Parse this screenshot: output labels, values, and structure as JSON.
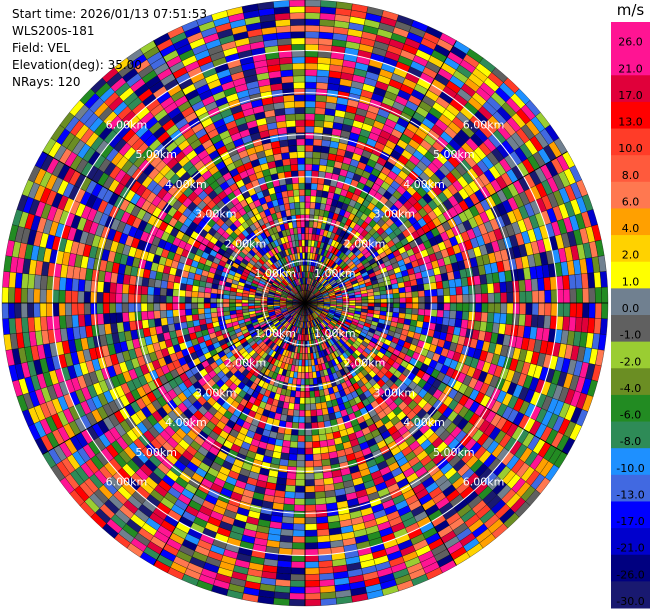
{
  "info": {
    "start_time": "Start time: 2026/01/13 07:51:53",
    "device": "WLS200s-181",
    "field": "Field: VEL",
    "elevation": "Elevation(deg): 35.00",
    "nrays": "NRays: 120"
  },
  "chart_data": {
    "type": "heatmap",
    "projection": "polar-ppi",
    "n_rays": 120,
    "n_gates": 48,
    "range_rings_km": [
      1,
      2,
      3,
      4,
      5,
      6
    ],
    "range_ring_labels": [
      "1.00km",
      "2.00km",
      "3.00km",
      "4.00km",
      "5.00km",
      "6.00km"
    ],
    "max_range_km": 7.2,
    "colorbar": {
      "unit": "m/s",
      "tick_labels": [
        "26.0",
        "21.0",
        "17.0",
        "13.0",
        "10.0",
        "8.0",
        "6.0",
        "4.0",
        "2.0",
        "1.0",
        "0.0",
        "-1.0",
        "-2.0",
        "-4.0",
        "-6.0",
        "-8.0",
        "-10.0",
        "-13.0",
        "-17.0",
        "-21.0",
        "-26.0",
        "-30.0"
      ],
      "colors": [
        "#ff1493",
        "#ff1493",
        "#e0003a",
        "#ff0000",
        "#ff3c28",
        "#ff5a3c",
        "#ff7850",
        "#ffa000",
        "#ffd200",
        "#ffff00",
        "#708090",
        "#606060",
        "#9acd32",
        "#6b8e23",
        "#228b22",
        "#2e8b57",
        "#1e90ff",
        "#4169e1",
        "#0000ff",
        "#0000cd",
        "#000080",
        "#191970"
      ]
    }
  }
}
